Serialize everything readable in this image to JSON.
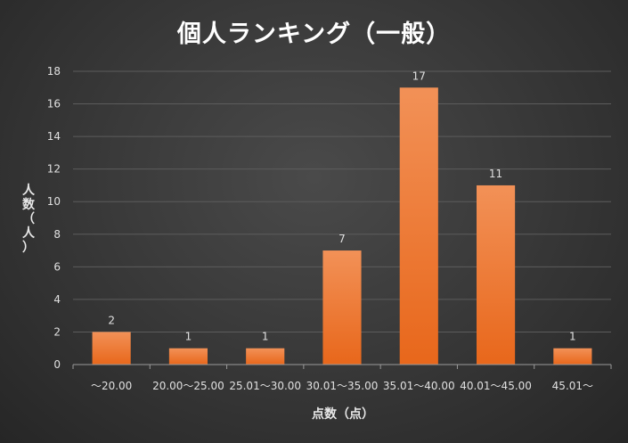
{
  "chart_data": {
    "type": "bar",
    "title": "個人ランキング（一般）",
    "xlabel": "点数（点）",
    "ylabel": "人数（人）",
    "categories": [
      "～20.00",
      "20.00～25.00",
      "25.01～30.00",
      "30.01～35.00",
      "35.01～40.00",
      "40.01～45.00",
      "45.01～"
    ],
    "values": [
      2,
      1,
      1,
      7,
      17,
      11,
      1
    ],
    "ylim": [
      0,
      18
    ],
    "yticks": [
      0,
      2,
      4,
      6,
      8,
      10,
      12,
      14,
      16,
      18
    ],
    "grid": true,
    "legend": "none",
    "colors": {
      "bar_top": "#f29157",
      "bar_bottom": "#e8671b",
      "grid": "#5c5c5c",
      "axis": "#9a9a9a",
      "text": "#e0e0e0"
    }
  }
}
